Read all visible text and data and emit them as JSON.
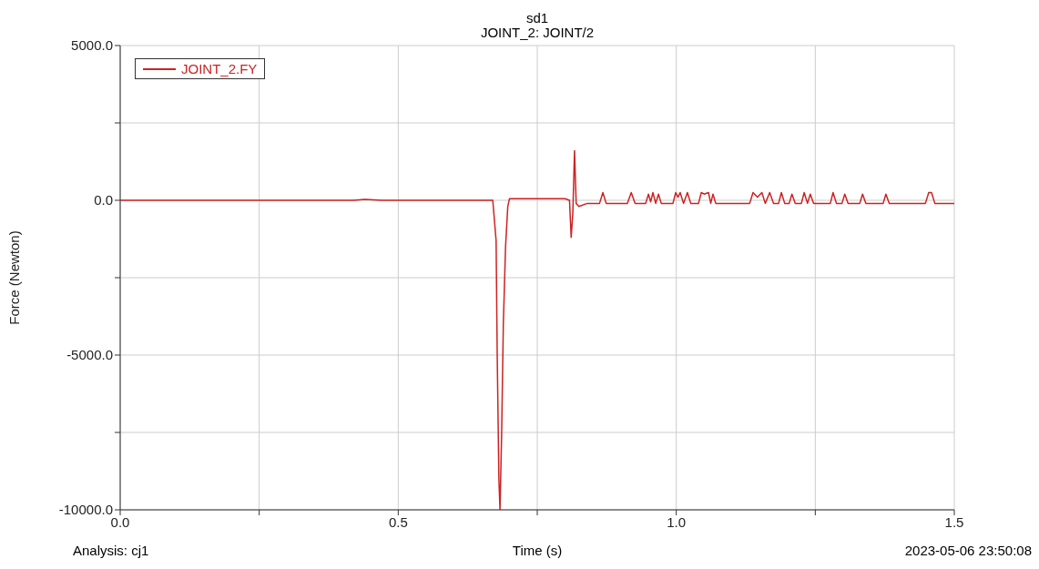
{
  "chart_data": {
    "type": "line",
    "title": "sd1",
    "subtitle": "JOINT_2: JOINT/2",
    "xlabel": "Time (s)",
    "ylabel": "Force (Newton)",
    "annotations": [
      "Analysis:  cj1",
      "2023-05-06 23:50:08"
    ],
    "xlim": [
      0,
      1.5
    ],
    "ylim": [
      -10000,
      5000
    ],
    "xticks": [
      {
        "value": 0,
        "label": "0.0"
      },
      {
        "value": 0.25,
        "label": null
      },
      {
        "value": 0.5,
        "label": "0.5"
      },
      {
        "value": 0.75,
        "label": null
      },
      {
        "value": 1,
        "label": "1.0"
      },
      {
        "value": 1.25,
        "label": null
      },
      {
        "value": 1.5,
        "label": "1.5"
      }
    ],
    "yticks": [
      {
        "value": -10000,
        "label": "-10000.0"
      },
      {
        "value": -7500,
        "label": null
      },
      {
        "value": -5000,
        "label": "-5000.0"
      },
      {
        "value": -2500,
        "label": null
      },
      {
        "value": 0,
        "label": "0.0"
      },
      {
        "value": 2500,
        "label": null
      },
      {
        "value": 5000,
        "label": "5000.0"
      }
    ],
    "grid": true,
    "legend": "top left",
    "series": [
      {
        "name": "JOINT_2.FY",
        "color": "#cc2222",
        "x": [
          0,
          0.42,
          0.44,
          0.47,
          0.67,
          0.676,
          0.678,
          0.681,
          0.683,
          0.686,
          0.689,
          0.693,
          0.697,
          0.7,
          0.8,
          0.808,
          0.811,
          0.814,
          0.817,
          0.82,
          0.825,
          0.84,
          0.862,
          0.868,
          0.874,
          0.912,
          0.919,
          0.926,
          0.945,
          0.95,
          0.954,
          0.958,
          0.963,
          0.968,
          0.973,
          0.994,
          0.999,
          1.003,
          1.007,
          1.013,
          1.02,
          1.026,
          1.04,
          1.045,
          1.05,
          1.058,
          1.062,
          1.066,
          1.071,
          1.132,
          1.138,
          1.146,
          1.154,
          1.16,
          1.168,
          1.175,
          1.184,
          1.189,
          1.195,
          1.203,
          1.208,
          1.214,
          1.225,
          1.23,
          1.236,
          1.241,
          1.247,
          1.277,
          1.282,
          1.288,
          1.298,
          1.303,
          1.309,
          1.33,
          1.335,
          1.341,
          1.372,
          1.377,
          1.383,
          1.448,
          1.454,
          1.459,
          1.465,
          1.5
        ],
        "values": [
          0,
          0,
          30,
          0,
          0,
          -1300,
          -5000,
          -9000,
          -10000,
          -7500,
          -4000,
          -1500,
          -200,
          50,
          50,
          0,
          -1200,
          -400,
          1600,
          -100,
          -200,
          -100,
          -100,
          250,
          -100,
          -100,
          250,
          -100,
          -100,
          200,
          -50,
          250,
          -100,
          200,
          -100,
          -100,
          250,
          100,
          250,
          -100,
          250,
          -100,
          -100,
          250,
          200,
          250,
          -100,
          200,
          -100,
          -100,
          250,
          100,
          250,
          -100,
          250,
          -100,
          -100,
          250,
          -100,
          -100,
          200,
          -100,
          -100,
          250,
          -100,
          200,
          -100,
          -100,
          250,
          -100,
          -100,
          200,
          -100,
          -100,
          200,
          -100,
          -100,
          200,
          -100,
          -100,
          250,
          250,
          -100,
          -100
        ]
      }
    ]
  }
}
